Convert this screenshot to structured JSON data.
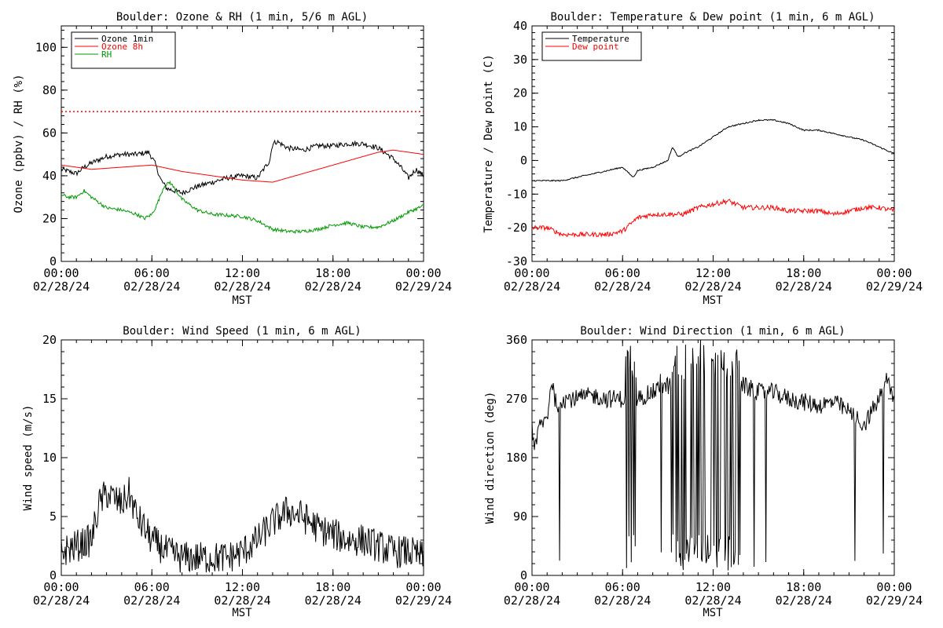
{
  "colors": {
    "black": "#000000",
    "red": "#ff0000",
    "green": "#009900",
    "ref_line": "#ff0000"
  },
  "chart_data": [
    {
      "type": "line",
      "title": "Boulder: Ozone & RH (1 min, 5/6 m AGL)",
      "xlabel": "MST",
      "ylabel": "Ozone (ppbv) / RH (%)",
      "ylim": [
        0,
        110
      ],
      "yticks": [
        0,
        20,
        40,
        60,
        80,
        100
      ],
      "xlim": [
        0,
        24
      ],
      "xticks": [
        0,
        6,
        12,
        18,
        24
      ],
      "xtick_labels": [
        [
          "00:00",
          "02/28/24"
        ],
        [
          "06:00",
          "02/28/24"
        ],
        [
          "12:00",
          "02/28/24"
        ],
        [
          "18:00",
          "02/28/24"
        ],
        [
          "00:00",
          "02/29/24"
        ]
      ],
      "legend": {
        "placement": "top-left",
        "entries": [
          {
            "label": "Ozone 1min",
            "color": "#000000"
          },
          {
            "label": "Ozone 8h",
            "color": "#ff0000"
          },
          {
            "label": "RH",
            "color": "#009900"
          }
        ]
      },
      "reference_line": {
        "y": 70,
        "style": "dotted",
        "color": "#ff0000"
      },
      "series": [
        {
          "name": "Ozone 1min",
          "color": "#000000",
          "noise": 1.2,
          "x": [
            0,
            0.5,
            1,
            1.5,
            2,
            3,
            4,
            5,
            5.8,
            6.2,
            6.6,
            7,
            8,
            9,
            10,
            11,
            12,
            13,
            13.8,
            14,
            14.3,
            15,
            16,
            17,
            18,
            19,
            20,
            21,
            22,
            22.5,
            23,
            23.5,
            24
          ],
          "y": [
            43,
            42,
            41,
            44,
            46,
            49,
            50,
            50,
            51,
            46,
            38,
            34,
            32,
            35,
            37,
            39,
            40,
            39,
            47,
            55,
            56,
            53,
            52,
            54,
            54,
            55,
            55,
            53,
            48,
            44,
            39,
            43,
            40
          ]
        },
        {
          "name": "Ozone 8h",
          "color": "#ff0000",
          "noise": 0,
          "x": [
            0,
            2,
            4,
            6,
            8,
            10,
            12,
            13,
            14,
            16,
            18,
            20,
            21,
            22,
            23,
            24
          ],
          "y": [
            45,
            43,
            44,
            45,
            42,
            40,
            38,
            37.5,
            37,
            41,
            45,
            49,
            51,
            52,
            51,
            50
          ]
        },
        {
          "name": "RH",
          "color": "#009900",
          "noise": 0.8,
          "x": [
            0,
            0.5,
            1,
            1.5,
            2,
            3,
            4,
            5,
            5.5,
            6,
            6.3,
            6.8,
            7.2,
            8,
            9,
            10,
            12,
            13,
            14,
            15,
            16,
            17,
            18,
            19,
            20,
            21,
            22,
            23,
            24
          ],
          "y": [
            31,
            30,
            30,
            33,
            30,
            25,
            24,
            22,
            20,
            22,
            26,
            35,
            37,
            29,
            24,
            22,
            21,
            19,
            15,
            14,
            14,
            15,
            17,
            18,
            16,
            16,
            19,
            23,
            26
          ]
        }
      ]
    },
    {
      "type": "line",
      "title": "Boulder: Temperature & Dew point (1 min, 6 m AGL)",
      "xlabel": "MST",
      "ylabel": "Temperature / Dew point (C)",
      "ylim": [
        -30,
        40
      ],
      "yticks": [
        -30,
        -20,
        -10,
        0,
        10,
        20,
        30,
        40
      ],
      "xlim": [
        0,
        24
      ],
      "xticks": [
        0,
        6,
        12,
        18,
        24
      ],
      "xtick_labels": [
        [
          "00:00",
          "02/28/24"
        ],
        [
          "06:00",
          "02/28/24"
        ],
        [
          "12:00",
          "02/28/24"
        ],
        [
          "18:00",
          "02/28/24"
        ],
        [
          "00:00",
          "02/29/24"
        ]
      ],
      "legend": {
        "placement": "top-left",
        "entries": [
          {
            "label": "Temperature",
            "color": "#000000"
          },
          {
            "label": "Dew point",
            "color": "#ff0000"
          }
        ]
      },
      "series": [
        {
          "name": "Temperature",
          "color": "#000000",
          "noise": 0.2,
          "x": [
            0,
            1,
            2,
            3,
            4,
            5,
            6,
            6.7,
            7,
            8,
            9,
            9.3,
            9.7,
            10,
            11,
            12,
            13,
            14,
            15,
            16,
            17,
            18,
            19,
            20,
            21,
            22,
            23,
            24
          ],
          "y": [
            -6,
            -6,
            -6,
            -5,
            -4,
            -3,
            -2,
            -5,
            -3,
            -2,
            0,
            4,
            1,
            2,
            4,
            7,
            10,
            11,
            12,
            12,
            11,
            9,
            9,
            8,
            7,
            6,
            4,
            2
          ]
        },
        {
          "name": "Dew point",
          "color": "#ff0000",
          "noise": 0.7,
          "x": [
            0,
            1,
            2,
            3,
            4,
            5,
            6,
            7,
            8,
            9,
            10,
            11,
            12,
            13,
            14,
            15,
            16,
            17,
            18,
            19,
            20,
            21,
            22,
            23,
            24
          ],
          "y": [
            -20,
            -20,
            -22,
            -22,
            -22,
            -22,
            -21,
            -17,
            -16,
            -16,
            -16,
            -14,
            -13,
            -12,
            -14,
            -14,
            -14,
            -15,
            -15,
            -15,
            -16,
            -15,
            -14,
            -14,
            -15
          ]
        }
      ]
    },
    {
      "type": "line",
      "title": "Boulder: Wind Speed (1 min, 6 m AGL)",
      "xlabel": "MST",
      "ylabel": "Wind speed (m/s)",
      "ylim": [
        0,
        20
      ],
      "yticks": [
        0,
        5,
        10,
        15,
        20
      ],
      "xlim": [
        0,
        24
      ],
      "xticks": [
        0,
        6,
        12,
        18,
        24
      ],
      "xtick_labels": [
        [
          "00:00",
          "02/28/24"
        ],
        [
          "06:00",
          "02/28/24"
        ],
        [
          "12:00",
          "02/28/24"
        ],
        [
          "18:00",
          "02/28/24"
        ],
        [
          "00:00",
          "02/29/24"
        ]
      ],
      "series": [
        {
          "name": "Wind speed",
          "color": "#000000",
          "noise": 1.4,
          "floor": 0,
          "x": [
            0,
            1,
            2,
            2.5,
            3,
            4,
            4.5,
            5,
            5.5,
            6,
            7,
            8,
            9,
            10,
            11,
            12,
            13,
            14,
            15,
            16,
            17,
            18,
            19,
            20,
            21,
            22,
            23,
            24
          ],
          "y": [
            2,
            2.5,
            3,
            6,
            7,
            6,
            7,
            5,
            4,
            3,
            2,
            1.5,
            1.5,
            1.5,
            1.5,
            2,
            3,
            4.5,
            5.5,
            5,
            4,
            3.5,
            3,
            3,
            2.5,
            2,
            2,
            1.5
          ]
        }
      ]
    },
    {
      "type": "line",
      "title": "Boulder: Wind Direction (1 min, 6 m AGL)",
      "xlabel": "MST",
      "ylabel": "Wind direction (deg)",
      "ylim": [
        0,
        360
      ],
      "yticks": [
        0,
        90,
        180,
        270,
        360
      ],
      "xlim": [
        0,
        24
      ],
      "xticks": [
        0,
        6,
        12,
        18,
        24
      ],
      "xtick_labels": [
        [
          "00:00",
          "02/28/24"
        ],
        [
          "06:00",
          "02/28/24"
        ],
        [
          "12:00",
          "02/28/24"
        ],
        [
          "18:00",
          "02/28/24"
        ],
        [
          "00:00",
          "02/29/24"
        ]
      ],
      "series": [
        {
          "name": "Wind direction",
          "color": "#000000",
          "noise": 14,
          "wrap_intervals": [
            [
              6.2,
              6.9
            ],
            [
              8.5,
              8.6
            ],
            [
              9.2,
              13.8
            ]
          ],
          "x": [
            0,
            0.2,
            0.5,
            1,
            1.3,
            1.6,
            2,
            3,
            4,
            5,
            6,
            7,
            8,
            9,
            10,
            11,
            12,
            13,
            14,
            15,
            16,
            17,
            18,
            19,
            20,
            21,
            21.5,
            22,
            23,
            23.5,
            24
          ],
          "y": [
            230,
            190,
            230,
            240,
            300,
            260,
            270,
            270,
            275,
            270,
            270,
            270,
            280,
            290,
            300,
            300,
            300,
            300,
            290,
            280,
            280,
            270,
            265,
            260,
            265,
            250,
            240,
            230,
            270,
            300,
            270
          ]
        }
      ]
    }
  ]
}
